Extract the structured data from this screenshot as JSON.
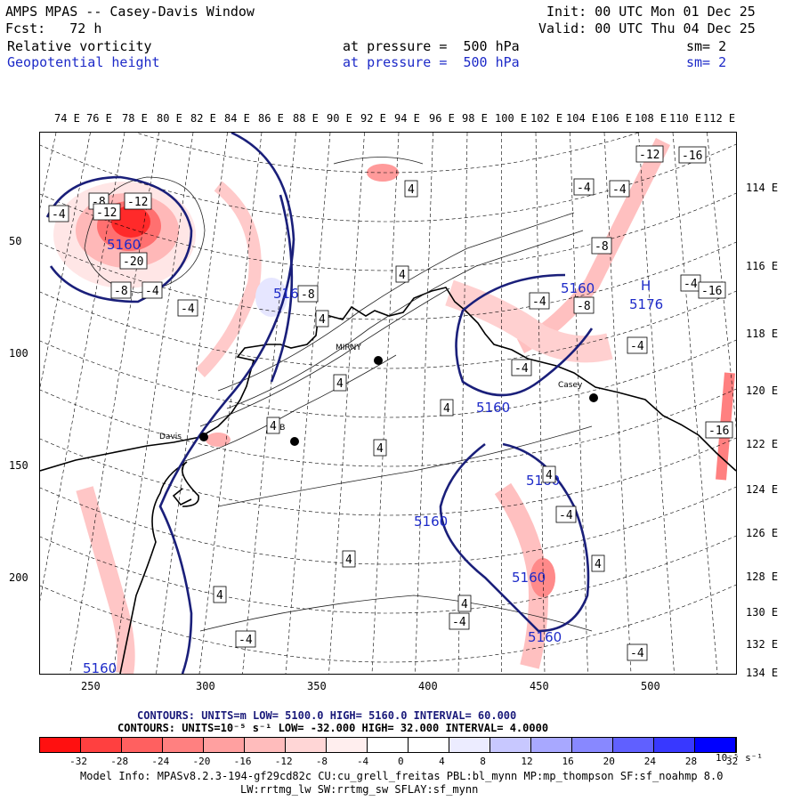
{
  "header": {
    "title": "AMPS MPAS -- Casey-Davis Window",
    "init": "Init: 00 UTC Mon 01 Dec 25",
    "fcst": "Fcst:   72 h",
    "valid": "Valid: 00 UTC Thu 04 Dec 25",
    "field1": "Relative vorticity",
    "field2": "Geopotential height",
    "pressure1": "at pressure =  500 hPa",
    "pressure2": "at pressure =  500 hPa",
    "sm1": "sm= 2",
    "sm2": "sm= 2"
  },
  "axes": {
    "top_lon": [
      "74 E",
      "76 E",
      "78 E",
      "80 E",
      "82 E",
      "84 E",
      "86 E",
      "88 E",
      "90 E",
      "92 E",
      "94 E",
      "96 E",
      "98 E",
      "100 E",
      "102 E",
      "104 E",
      "106 E",
      "108 E",
      "110 E",
      "112 E"
    ],
    "right_lon": [
      "114 E",
      "116 E",
      "118 E",
      "120 E",
      "122 E",
      "124 E",
      "126 E",
      "128 E",
      "130 E",
      "132 E",
      "134 E"
    ],
    "y_ticks": [
      "50",
      "100",
      "150",
      "200"
    ],
    "x_ticks": [
      "250",
      "300",
      "350",
      "400",
      "450",
      "500"
    ]
  },
  "map": {
    "stations": [
      "Davis",
      "Casey",
      "MIRNY",
      "MTB"
    ],
    "height_labels": [
      "5160",
      "5160",
      "5160",
      "5160",
      "5160",
      "5160",
      "5176",
      "5160",
      "5160",
      "5160"
    ],
    "high_label": "H",
    "vort_labels": [
      "-4",
      "-8",
      "-12",
      "-12",
      "-20",
      "-8",
      "-4",
      "4",
      "4",
      "4",
      "4",
      "-4",
      "-8",
      "-4",
      "4",
      "4",
      "4",
      "4",
      "4",
      "-4",
      "-4",
      "-4",
      "-4",
      "-8",
      "-4",
      "-12",
      "-8",
      "-16",
      "-16",
      "-16",
      "-4",
      "4",
      "4",
      "-4",
      "-4",
      "-4",
      "4"
    ]
  },
  "footer": {
    "contours1": "CONTOURS:  UNITS=m  LOW=  5100.0       HIGH=  5160.0      INTERVAL=   60.000",
    "contours2": "CONTOURS:  UNITS=10⁻⁵ s⁻¹  LOW=  -32.000        HIGH=  32.000      INTERVAL=    4.0000",
    "cbar_labels": [
      "-32",
      "-28",
      "-24",
      "-20",
      "-16",
      "-12",
      "-8",
      "-4",
      "0",
      "4",
      "8",
      "12",
      "16",
      "20",
      "24",
      "28",
      "32"
    ],
    "cbar_unit": "10⁻⁵ s⁻¹",
    "cbar_colors": [
      "#ff1010",
      "#ff4040",
      "#ff6060",
      "#ff8080",
      "#ffa0a0",
      "#ffbcbc",
      "#ffd6d6",
      "#ffeeee",
      "#ffffff",
      "#ffffff",
      "#ececff",
      "#c8c8ff",
      "#a8a8ff",
      "#8888ff",
      "#6060ff",
      "#3838ff",
      "#0000ff"
    ],
    "info1": "Model Info: MPASv8.2.3-194-gf29cd82c CU:cu_grell_freitas PBL:bl_mynn MP:mp_thompson SF:sf_noahmp 8.0",
    "info2": "LW:rrtmg_lw SW:rrtmg_sw SFLAY:sf_mynn"
  }
}
